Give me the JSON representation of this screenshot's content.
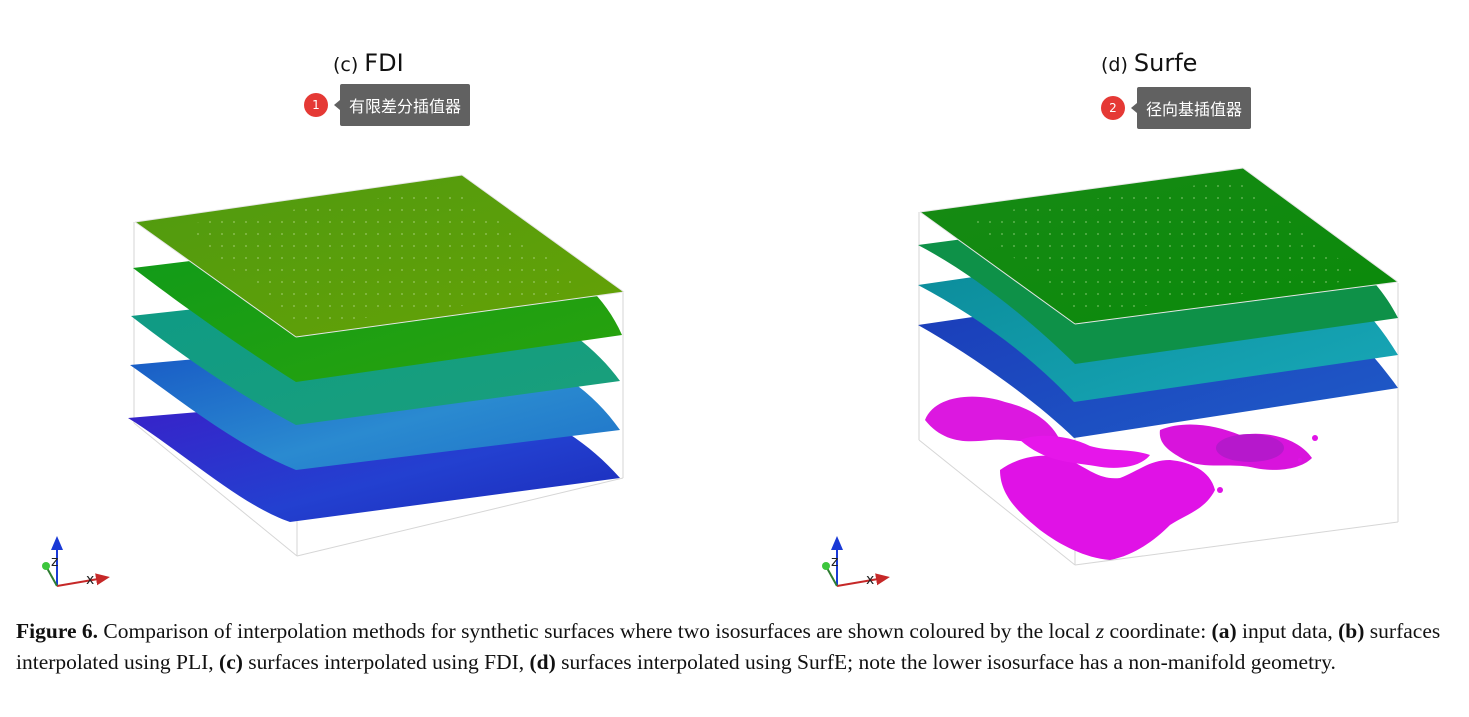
{
  "panels": [
    {
      "letter": "(c)",
      "title": "FDI",
      "annotation": {
        "number": "1",
        "text": "有限差分插值器"
      }
    },
    {
      "letter": "(d)",
      "title": "Surfe",
      "annotation": {
        "number": "2",
        "text": "径向基插值器"
      }
    }
  ],
  "axes_triad": {
    "z_label": "z",
    "x_label": "x"
  },
  "colors": {
    "layer_top_fdi": "#5a9a0a",
    "layer_green": "#1f9a14",
    "layer_teal": "#12a184",
    "layer_blue": "#1a62c4",
    "layer_indigo": "#2a1ec8",
    "magenta_isosurface": "#e012e6",
    "annotation_badge": "#e53935",
    "annotation_tip": "#616161"
  },
  "caption": {
    "figure_label": "Figure 6.",
    "intro": " Comparison of interpolation methods for synthetic surfaces where two isosurfaces are shown coloured by the local ",
    "z_var": "z",
    "coord": " coordinate:",
    "a_label": "(a)",
    "a_text": " input data, ",
    "b_label": "(b)",
    "b_text": " surfaces interpolated using PLI, ",
    "c_label": "(c)",
    "c_text": " surfaces interpolated using FDI, ",
    "d_label": "(d)",
    "d_text": " surfaces interpolated using SurfE; note the lower isosurface has a non-manifold geometry."
  }
}
